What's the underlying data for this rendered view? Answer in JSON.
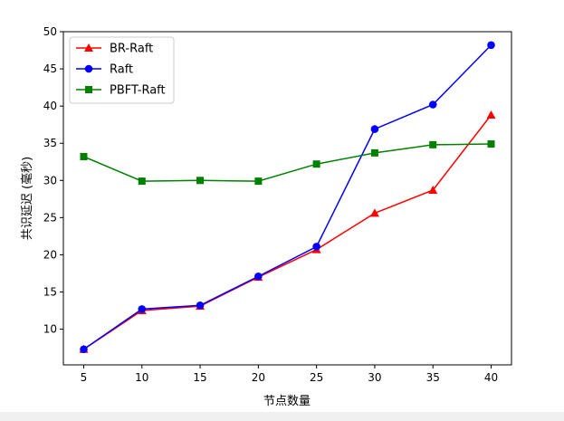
{
  "chart_data": {
    "type": "line",
    "title": "",
    "xlabel": "节点数量",
    "ylabel": "共识延迟 (毫秒)",
    "x": [
      5,
      10,
      15,
      20,
      25,
      30,
      35,
      40
    ],
    "xlim": [
      3.25,
      41.75
    ],
    "ylim": [
      5.2,
      50.0
    ],
    "xticks": [
      5,
      10,
      15,
      20,
      25,
      30,
      35,
      40
    ],
    "yticks": [
      10,
      15,
      20,
      25,
      30,
      35,
      40,
      45,
      50
    ],
    "grid": false,
    "legend_position": "top-left",
    "series": [
      {
        "name": "BR-Raft",
        "color": "#ff0000",
        "marker": "triangle",
        "values": [
          7.3,
          12.5,
          13.1,
          17.0,
          20.7,
          25.6,
          28.7,
          38.8
        ]
      },
      {
        "name": "Raft",
        "color": "#0000ff",
        "marker": "circle",
        "values": [
          7.3,
          12.7,
          13.2,
          17.1,
          21.1,
          36.9,
          40.2,
          48.2
        ]
      },
      {
        "name": "PBFT-Raft",
        "color": "#008000",
        "marker": "square",
        "values": [
          33.2,
          29.9,
          30.0,
          29.9,
          32.2,
          33.7,
          34.8,
          34.9
        ]
      }
    ]
  }
}
